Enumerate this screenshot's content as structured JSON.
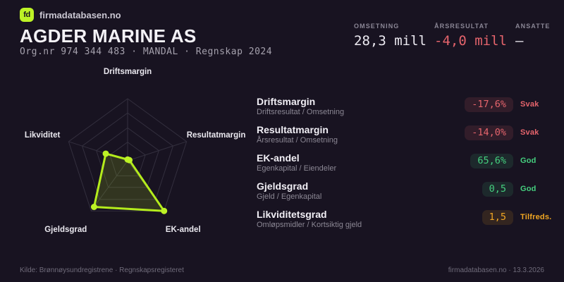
{
  "theme": {
    "background": "#181321",
    "lime": "#bdf226",
    "chart_stroke": "#b4ec1c",
    "chart_fill": "rgba(184,236,28,0.16)",
    "grid": "#332f3e",
    "red": "#e5646c",
    "green": "#45d07f",
    "amber": "#f0a622"
  },
  "brand": {
    "logo": "fd",
    "site": "firmadatabasen.no"
  },
  "header": {
    "company": "AGDER MARINE AS",
    "meta": "Org.nr 974 344 483  ·  MANDAL  ·  Regnskap 2024"
  },
  "stats": [
    {
      "label": "OMSETNING",
      "value": "28,3 mill",
      "tone": "neutral"
    },
    {
      "label": "ÅRSRESULTAT",
      "value": "-4,0 mill",
      "tone": "neg"
    },
    {
      "label": "ANSATTE",
      "value": "–",
      "tone": "neutral"
    }
  ],
  "chart_data": {
    "type": "radar",
    "axes": [
      "Driftsmargin",
      "Resultatmargin",
      "EK-andel",
      "Gjeldsgrad",
      "Likviditet"
    ],
    "values_norm": [
      0.02,
      0.03,
      1.0,
      0.92,
      0.37
    ],
    "ring_fractions": [
      0.3,
      0.53,
      0.77,
      1.0
    ],
    "legend": "none",
    "metric_values": {
      "Driftsmargin": "-17,6%",
      "Resultatmargin": "-14,0%",
      "EK-andel": "65,6%",
      "Gjeldsgrad": "0,5",
      "Likviditet": "1,5"
    }
  },
  "metrics": [
    {
      "title": "Driftsmargin",
      "formula": "Driftsresultat / Omsetning",
      "value": "-17,6%",
      "status": "Svak",
      "tone": "bad"
    },
    {
      "title": "Resultatmargin",
      "formula": "Årsresultat / Omsetning",
      "value": "-14,0%",
      "status": "Svak",
      "tone": "bad"
    },
    {
      "title": "EK-andel",
      "formula": "Egenkapital / Eiendeler",
      "value": "65,6%",
      "status": "God",
      "tone": "good"
    },
    {
      "title": "Gjeldsgrad",
      "formula": "Gjeld / Egenkapital",
      "value": "0,5",
      "status": "God",
      "tone": "good"
    },
    {
      "title": "Likviditetsgrad",
      "formula": "Omløpsmidler / Kortsiktig gjeld",
      "value": "1,5",
      "status": "Tilfreds.",
      "tone": "warn"
    }
  ],
  "footer": {
    "left": "Kilde: Brønnøysundregistrene · Regnskapsregisteret",
    "right": "firmadatabasen.no · 13.3.2026"
  }
}
